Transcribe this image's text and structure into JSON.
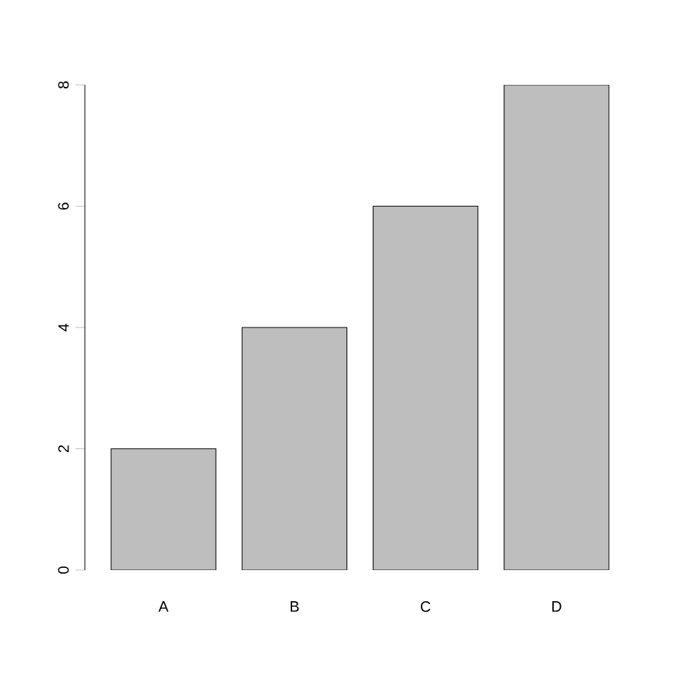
{
  "chart_data": {
    "type": "bar",
    "categories": [
      "A",
      "B",
      "C",
      "D"
    ],
    "values": [
      2,
      4,
      6,
      8
    ],
    "color": "#bebebe",
    "ylim": [
      0,
      8
    ],
    "yticks": [
      0,
      2,
      4,
      6,
      8
    ]
  }
}
